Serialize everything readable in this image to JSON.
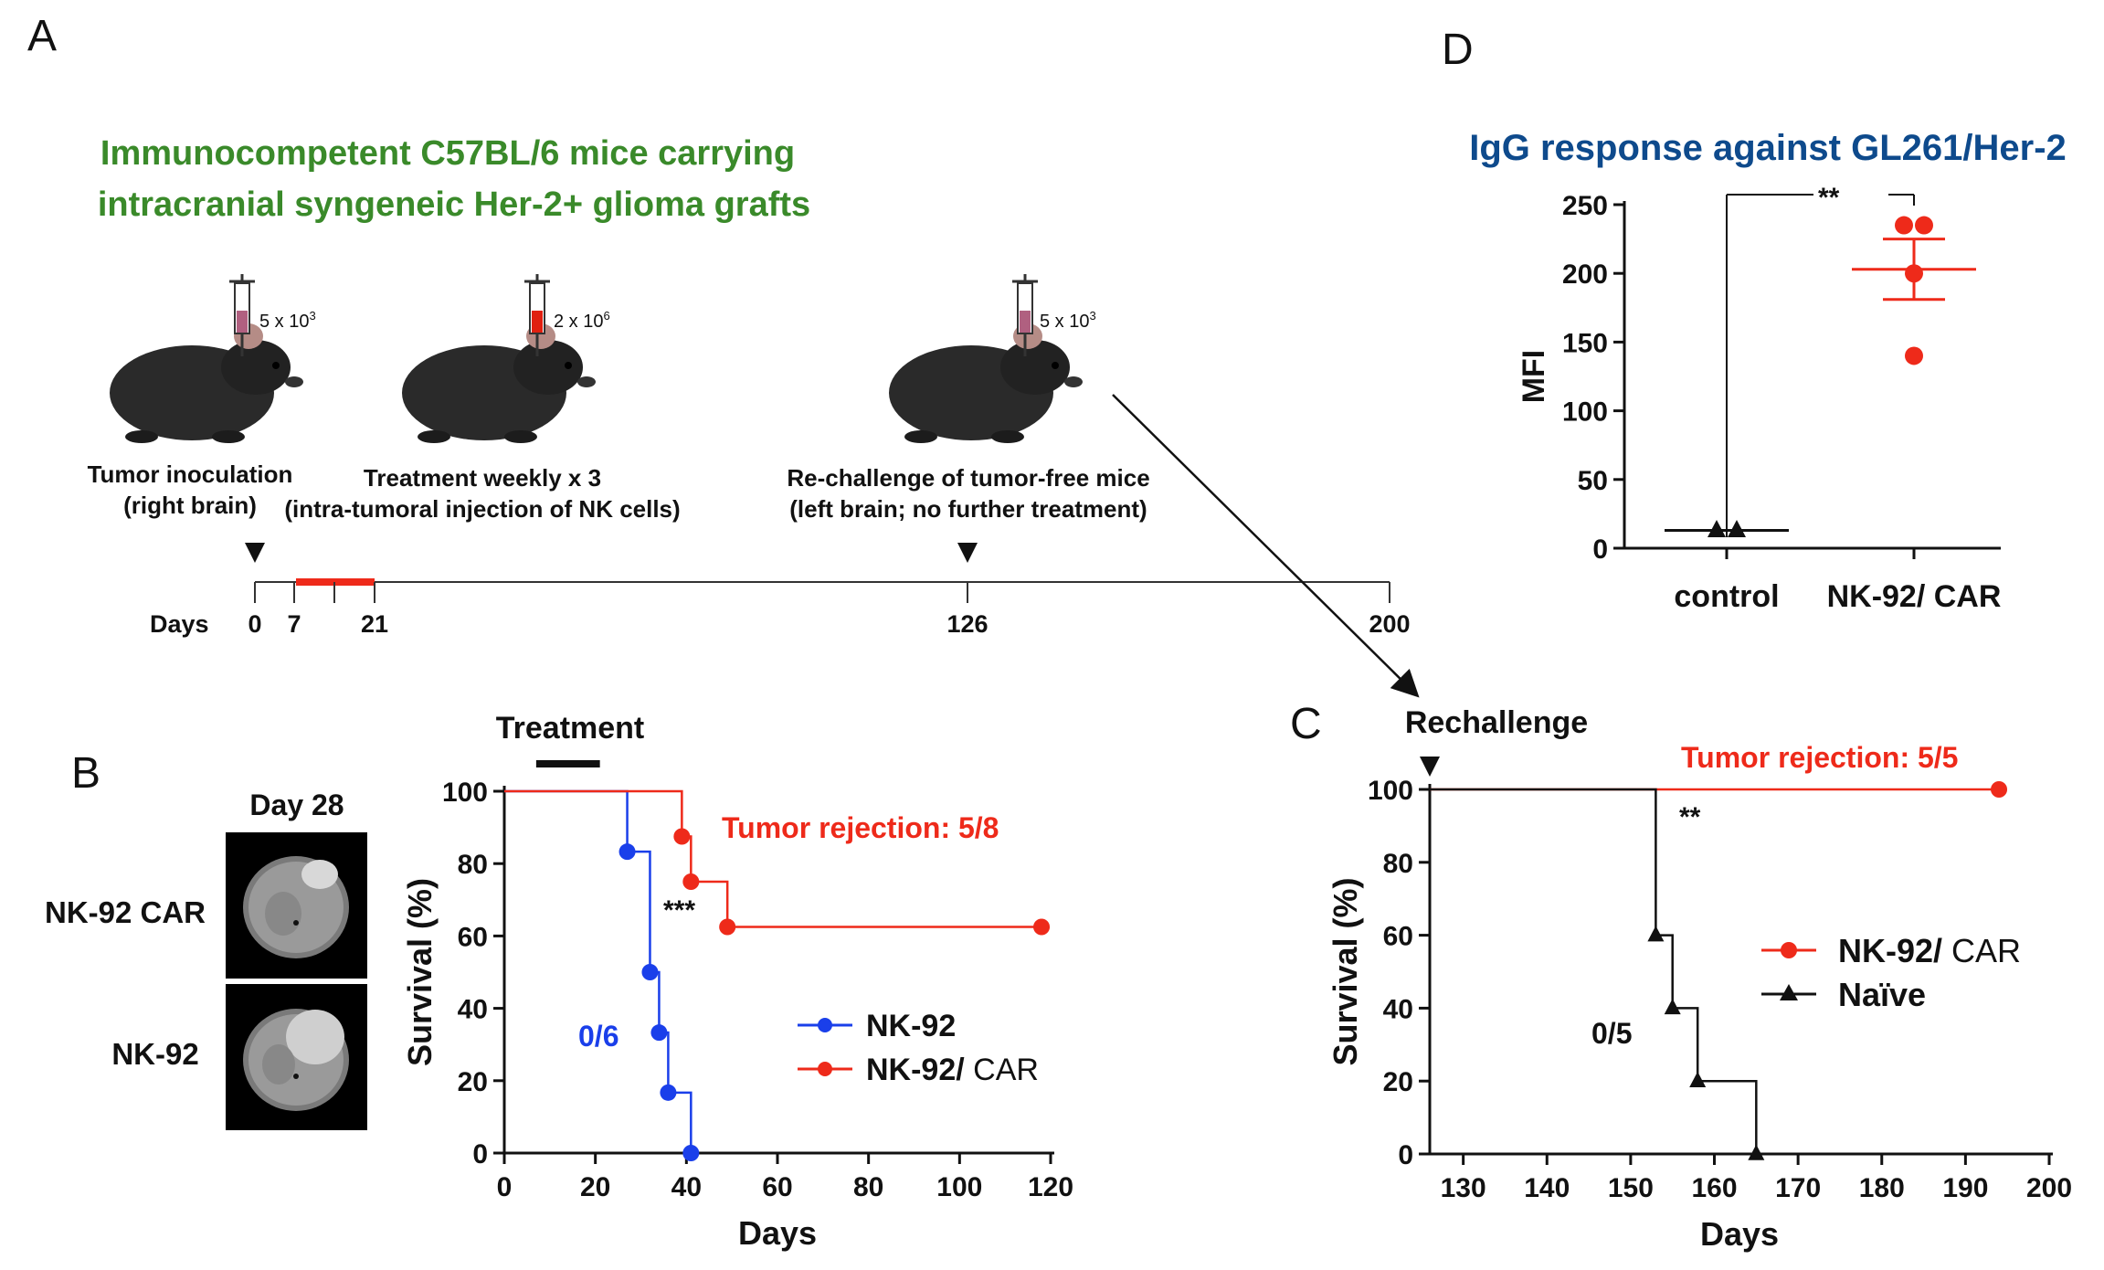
{
  "panel_letters": {
    "a": "A",
    "b": "B",
    "c": "C",
    "d": "D"
  },
  "colors": {
    "green": "#3a8a2a",
    "red": "#ee2a1a",
    "blue": "#1a3fea",
    "navy": "#0e4a8c",
    "black": "#111111"
  },
  "panel_a": {
    "title_line1": "Immunocompetent C57BL/6 mice carrying",
    "title_line2": "intracranial syngeneic Her-2+ glioma grafts",
    "syringe_doses": [
      "5 x 10",
      "2 x 10",
      "5 x 10"
    ],
    "syringe_exponents": [
      "3",
      "6",
      "3"
    ],
    "events": [
      {
        "line1": "Tumor inoculation",
        "line2": "(right brain)"
      },
      {
        "line1": "Treatment weekly x 3",
        "line2": "(intra-tumoral injection of NK cells)"
      },
      {
        "line1": "Re-challenge of tumor-free mice",
        "line2": "(left brain; no further treatment)"
      }
    ],
    "timeline_label": "Days",
    "timeline_ticks": [
      "0",
      "7",
      "21",
      "126",
      "200"
    ]
  },
  "panel_b": {
    "image_header": "Day 28",
    "row_labels": [
      "NK-92 CAR",
      "NK-92"
    ],
    "treatment_label": "Treatment",
    "tumor_rejection": "Tumor rejection: 5/8",
    "blue_count": "0/6",
    "significance": "***",
    "legend_line1_name": "NK-92",
    "legend_line2_name": "NK-92/",
    "legend_line2_suffix": "CAR"
  },
  "panel_c": {
    "rechallenge_label": "Rechallenge",
    "tumor_rejection": "Tumor rejection: 5/5",
    "significance": "**",
    "black_count": "0/5",
    "legend_line1_name": "NK-92/",
    "legend_line1_suffix": "CAR",
    "legend_line2_name": "Naïve"
  },
  "panel_d": {
    "significance": "**"
  },
  "chart_data": [
    {
      "id": "B",
      "type": "line",
      "step": true,
      "xlabel": "Days",
      "ylabel": "Survival  (%)",
      "xlim": [
        0,
        120
      ],
      "ylim": [
        0,
        100
      ],
      "xticks": [
        0,
        20,
        40,
        60,
        80,
        100,
        120
      ],
      "yticks": [
        0,
        20,
        40,
        60,
        80,
        100
      ],
      "treatment_window": [
        7,
        21
      ],
      "series": [
        {
          "name": "NK-92",
          "color": "#1a3fea",
          "marker": "circle",
          "x": [
            0,
            27,
            32,
            34,
            36,
            41
          ],
          "y": [
            100,
            83.3,
            50,
            33.3,
            16.7,
            0
          ],
          "markers": [
            [
              27,
              83.3
            ],
            [
              32,
              50
            ],
            [
              34,
              33.3
            ],
            [
              36,
              16.7
            ],
            [
              41,
              0
            ]
          ]
        },
        {
          "name": "NK-92/ CAR",
          "color": "#ee2a1a",
          "marker": "circle",
          "x": [
            0,
            39,
            41,
            49,
            118
          ],
          "y": [
            100,
            87.5,
            75,
            62.5,
            62.5
          ],
          "markers": [
            [
              39,
              87.5
            ],
            [
              41,
              75
            ],
            [
              49,
              62.5
            ],
            [
              118,
              62.5
            ]
          ]
        }
      ]
    },
    {
      "id": "C",
      "type": "line",
      "step": true,
      "xlabel": "Days",
      "ylabel": "Survival  (%)",
      "xlim": [
        126,
        200
      ],
      "ylim": [
        0,
        100
      ],
      "xticks": [
        130,
        140,
        150,
        160,
        170,
        180,
        190,
        200
      ],
      "yticks": [
        0,
        20,
        40,
        60,
        80,
        100
      ],
      "series": [
        {
          "name": "NK-92/ CAR",
          "color": "#ee2a1a",
          "marker": "circle",
          "x": [
            126,
            194
          ],
          "y": [
            100,
            100
          ],
          "markers": [
            [
              194,
              100
            ]
          ]
        },
        {
          "name": "Naïve",
          "color": "#111111",
          "marker": "triangle",
          "x": [
            126,
            153,
            155,
            158,
            165
          ],
          "y": [
            100,
            60,
            40,
            20,
            0
          ],
          "markers": [
            [
              153,
              60
            ],
            [
              155,
              40
            ],
            [
              158,
              20
            ],
            [
              165,
              0
            ]
          ]
        }
      ]
    },
    {
      "id": "D",
      "type": "scatter",
      "title": "IgG response against GL261/Her-2",
      "xlabel": "",
      "ylabel": "MFI",
      "ylim": [
        0,
        250
      ],
      "yticks": [
        0,
        50,
        100,
        150,
        200,
        250
      ],
      "categories": [
        "control",
        "NK-92/  CAR"
      ],
      "groups": [
        {
          "category": "control",
          "color": "#111111",
          "marker": "triangle",
          "values": [
            13,
            13
          ],
          "mean": 13,
          "sem": 0
        },
        {
          "category": "NK-92/  CAR",
          "color": "#ee2a1a",
          "marker": "circle",
          "values": [
            235,
            235,
            200,
            140
          ],
          "mean": 203,
          "sem": 22
        }
      ]
    }
  ]
}
